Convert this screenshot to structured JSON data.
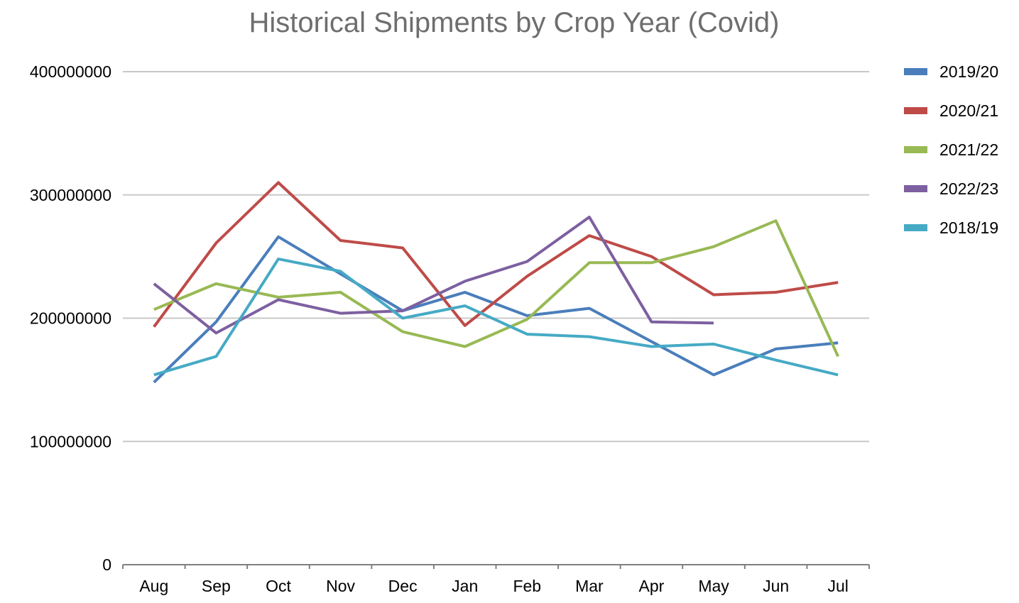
{
  "chart_data": {
    "type": "line",
    "title": "Historical Shipments by Crop Year (Covid)",
    "xlabel": "",
    "ylabel": "",
    "categories": [
      "Aug",
      "Sep",
      "Oct",
      "Nov",
      "Dec",
      "Jan",
      "Feb",
      "Mar",
      "Apr",
      "May",
      "Jun",
      "Jul"
    ],
    "ylim": [
      0,
      400000000
    ],
    "yticks": [
      "0",
      "100000000",
      "200000000",
      "300000000",
      "400000000"
    ],
    "grid": true,
    "legend_position": "right",
    "series": [
      {
        "name": "2019/20",
        "color": "#4a7ebb",
        "values": [
          148000000,
          197000000,
          266000000,
          236000000,
          206000000,
          221000000,
          202000000,
          208000000,
          181000000,
          154000000,
          175000000,
          180000000
        ]
      },
      {
        "name": "2020/21",
        "color": "#be4b48",
        "values": [
          193000000,
          261000000,
          310000000,
          263000000,
          257000000,
          194000000,
          234000000,
          267000000,
          250000000,
          219000000,
          221000000,
          229000000
        ]
      },
      {
        "name": "2021/22",
        "color": "#98b954",
        "values": [
          207000000,
          228000000,
          217000000,
          221000000,
          189000000,
          177000000,
          199000000,
          245000000,
          245000000,
          258000000,
          279000000,
          169000000
        ]
      },
      {
        "name": "2022/23",
        "color": "#7d60a0",
        "values": [
          228000000,
          188000000,
          215000000,
          204000000,
          206000000,
          230000000,
          246000000,
          282000000,
          197000000,
          196000000,
          null,
          null
        ]
      },
      {
        "name": "2018/19",
        "color": "#46aac5",
        "values": [
          154000000,
          169000000,
          248000000,
          238000000,
          200000000,
          210000000,
          187000000,
          185000000,
          177000000,
          179000000,
          166000000,
          154000000
        ]
      }
    ]
  }
}
